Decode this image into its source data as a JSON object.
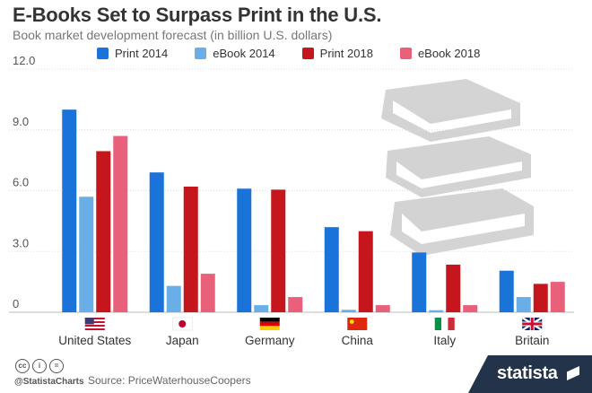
{
  "header": {
    "title": "E-Books Set to Surpass Print in the U.S.",
    "subtitle": "Book market development forecast (in billion U.S. dollars)"
  },
  "chart_data": {
    "type": "bar",
    "categories": [
      "United States",
      "Japan",
      "Germany",
      "China",
      "Italy",
      "Britain"
    ],
    "series": [
      {
        "name": "Print 2014",
        "color": "#1a73d9",
        "values": [
          10.0,
          6.9,
          6.1,
          4.2,
          2.95,
          2.05
        ]
      },
      {
        "name": "eBook 2014",
        "color": "#6aaee8",
        "values": [
          5.7,
          1.3,
          0.35,
          0.12,
          0.1,
          0.75
        ]
      },
      {
        "name": "Print 2018",
        "color": "#c4161c",
        "values": [
          7.95,
          6.2,
          6.05,
          4.0,
          2.35,
          1.4
        ]
      },
      {
        "name": "eBook 2018",
        "color": "#e8607a",
        "values": [
          8.7,
          1.9,
          0.75,
          0.35,
          0.35,
          1.5
        ]
      }
    ],
    "yticks": [
      "0",
      "3.0",
      "6.0",
      "9.0",
      "12.0"
    ],
    "ylim": [
      0,
      12
    ],
    "grid": true,
    "legend": "top",
    "flags": [
      "us-flag-icon",
      "japan-flag-icon",
      "germany-flag-icon",
      "china-flag-icon",
      "italy-flag-icon",
      "britain-flag-icon"
    ]
  },
  "decoration": {
    "illustration": "books-stack-icon"
  },
  "footer": {
    "handle": "@StatistaCharts",
    "source": "Source: PriceWaterhouseCoopers",
    "brand": "statista"
  }
}
